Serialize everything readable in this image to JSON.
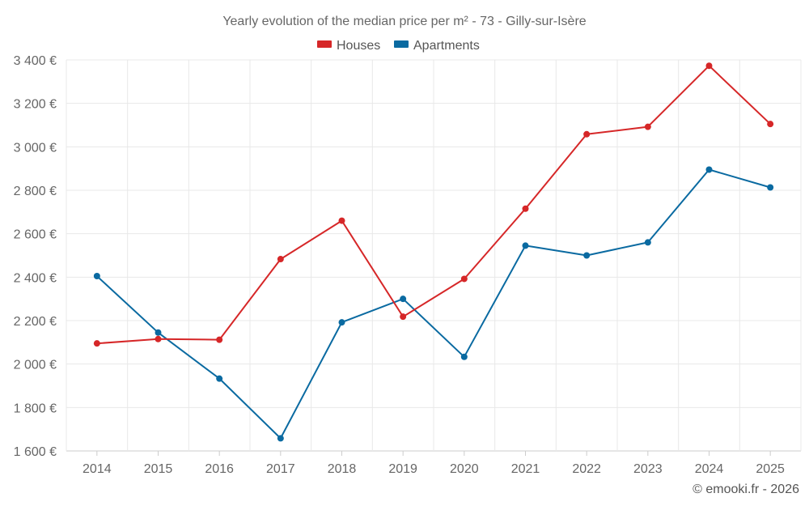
{
  "chart_data": {
    "type": "line",
    "title": "Yearly evolution of the median price per m² - 73 - Gilly-sur-Isère",
    "categories": [
      "2014",
      "2015",
      "2016",
      "2017",
      "2018",
      "2019",
      "2020",
      "2021",
      "2022",
      "2023",
      "2024",
      "2025"
    ],
    "series": [
      {
        "name": "Houses",
        "color": "#d62728",
        "values": [
          2095,
          2115,
          2112,
          2483,
          2660,
          2218,
          2392,
          2715,
          3058,
          3092,
          3373,
          3105
        ]
      },
      {
        "name": "Apartments",
        "color": "#0a6aa1",
        "values": [
          2405,
          2145,
          1933,
          1658,
          2192,
          2300,
          2033,
          2545,
          2500,
          2560,
          2895,
          2813
        ]
      }
    ],
    "yticks": [
      1600,
      1800,
      2000,
      2200,
      2400,
      2600,
      2800,
      3000,
      3200,
      3400
    ],
    "ytick_labels": [
      "1 600 €",
      "1 800 €",
      "2 000 €",
      "2 200 €",
      "2 400 €",
      "2 600 €",
      "2 800 €",
      "3 000 €",
      "3 200 €",
      "3 400 €"
    ],
    "ylim": [
      1600,
      3400
    ],
    "legend_position": "top-center",
    "grid": true
  },
  "credit": "© emooki.fr - 2026"
}
